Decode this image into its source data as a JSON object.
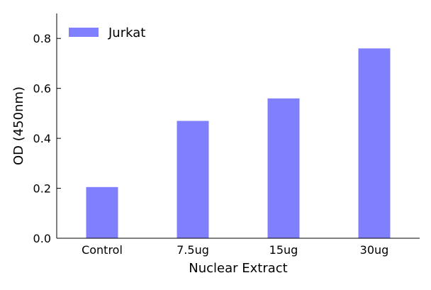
{
  "chart_data": {
    "type": "bar",
    "title": "",
    "xlabel": "Nuclear Extract",
    "ylabel": "OD (450nm)",
    "categories": [
      "Control",
      "7.5ug",
      "15ug",
      "30ug"
    ],
    "series": [
      {
        "name": "Jurkat",
        "values": [
          0.205,
          0.47,
          0.56,
          0.76
        ],
        "color": "#8080ff"
      }
    ],
    "ylim": [
      0,
      0.9
    ],
    "yticks": [
      0.0,
      0.2,
      0.4,
      0.6,
      0.8
    ],
    "ytick_labels": [
      "0.0",
      "0.2",
      "0.4",
      "0.6",
      "0.8"
    ],
    "grid": false,
    "legend_position": "top-left"
  }
}
